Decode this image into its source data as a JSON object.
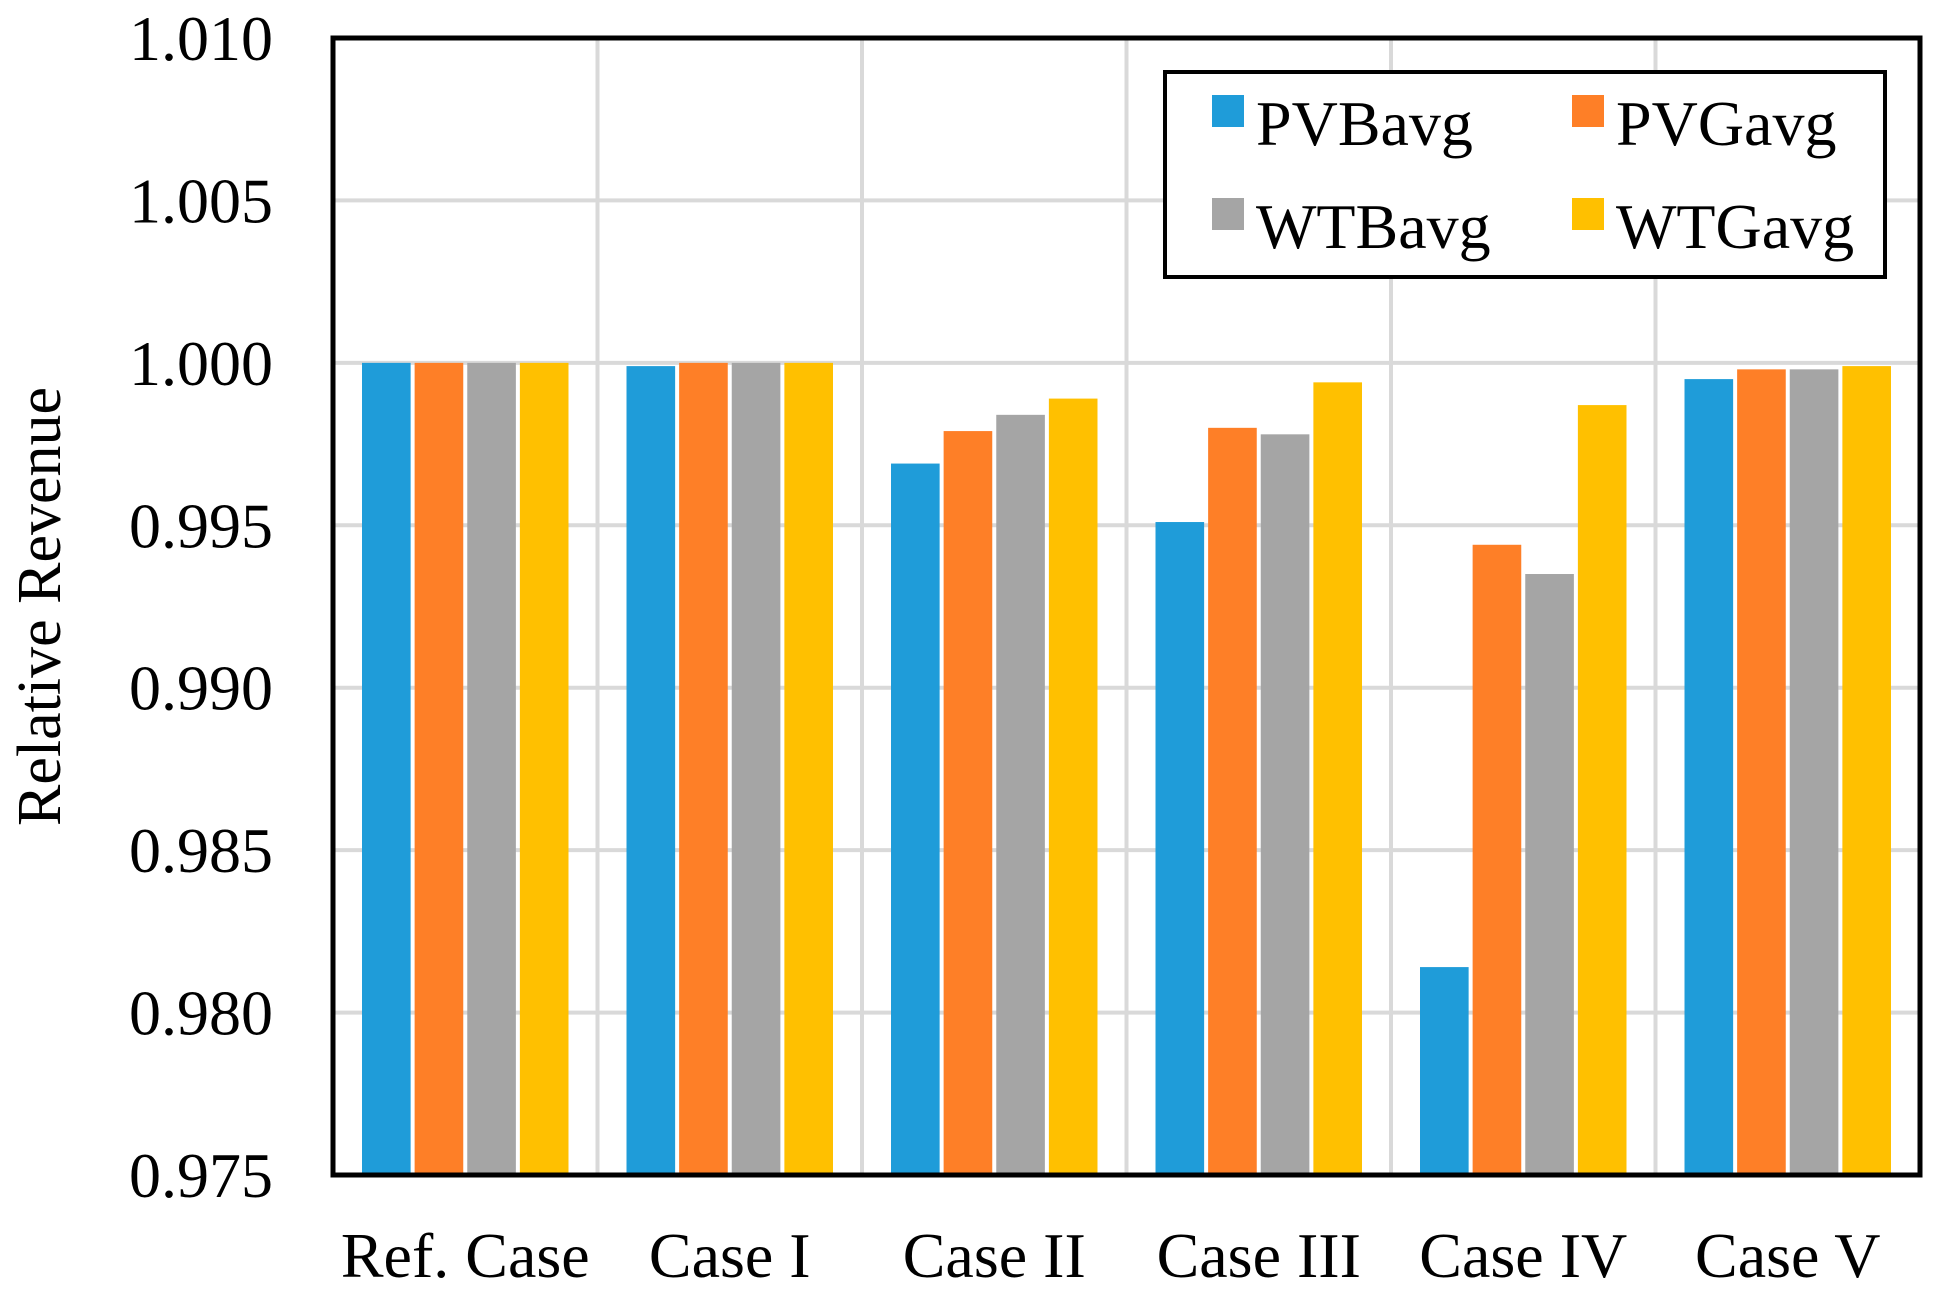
{
  "chart_data": {
    "type": "bar",
    "title": "",
    "xlabel": "",
    "ylabel": "Relative Revenue",
    "ylim": [
      0.975,
      1.01
    ],
    "yticks": [
      "0.975",
      "0.980",
      "0.985",
      "0.990",
      "0.995",
      "1.000",
      "1.005",
      "1.010"
    ],
    "ytick_values": [
      0.975,
      0.98,
      0.985,
      0.99,
      0.995,
      1.0,
      1.005,
      1.01
    ],
    "categories": [
      "Ref. Case",
      "Case I",
      "Case II",
      "Case III",
      "Case IV",
      "Case V"
    ],
    "grid": true,
    "legend_position": "top-right",
    "series": [
      {
        "name": "PVBavg",
        "color": "#1f9cd9",
        "values": [
          1.0,
          0.9999,
          0.9969,
          0.9951,
          0.9814,
          0.9995
        ]
      },
      {
        "name": "PVGavg",
        "color": "#fe7f27",
        "values": [
          1.0,
          1.0,
          0.9979,
          0.998,
          0.9944,
          0.9998
        ]
      },
      {
        "name": "WTBavg",
        "color": "#a5a5a5",
        "values": [
          1.0,
          1.0,
          0.9984,
          0.9978,
          0.9935,
          0.9998
        ]
      },
      {
        "name": "WTGavg",
        "color": "#ffc000",
        "values": [
          1.0,
          1.0,
          0.9989,
          0.9994,
          0.9987,
          0.9999
        ]
      }
    ]
  }
}
